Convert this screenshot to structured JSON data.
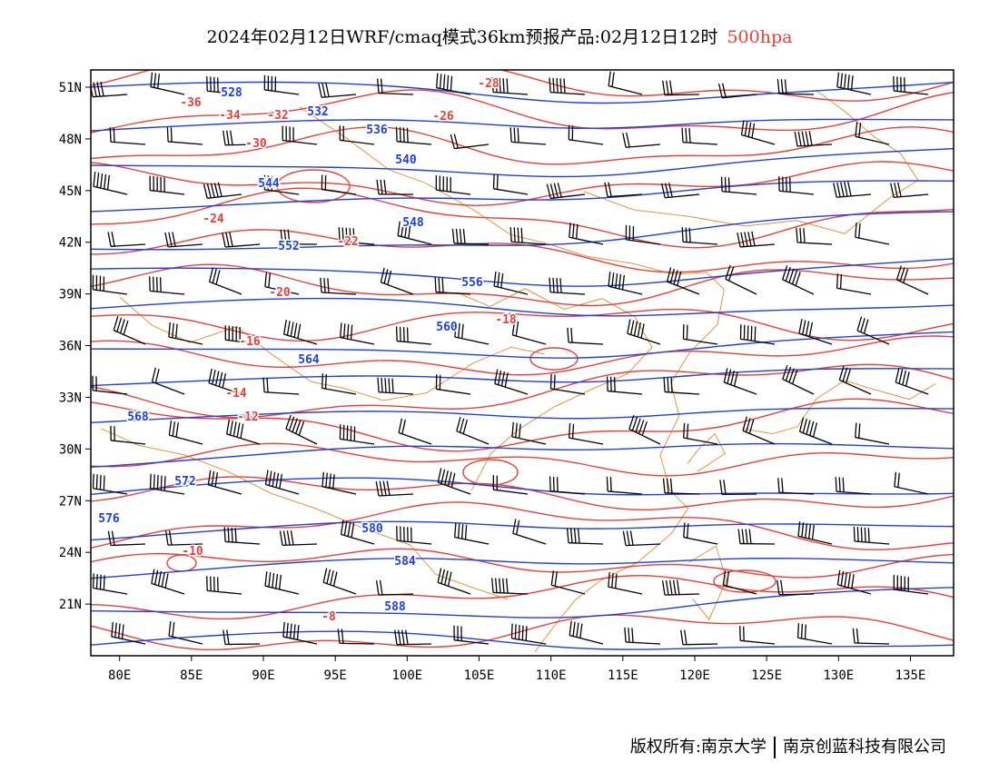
{
  "title": {
    "main": "2024年02月12日WRF/cmaq模式36km预报产品:02月12日12时",
    "level": "500hpa"
  },
  "colors": {
    "height_contour": "#1f3fe0",
    "temp_contour": "#e8403a",
    "coastline": "#e08a2a",
    "wind_barb": "#000000",
    "frame": "#000000"
  },
  "map": {
    "lon_range": [
      78,
      138
    ],
    "lat_range": [
      18,
      52
    ],
    "lon_ticks": [
      "80E",
      "85E",
      "90E",
      "95E",
      "100E",
      "105E",
      "110E",
      "115E",
      "120E",
      "125E",
      "130E",
      "135E"
    ],
    "lat_ticks": [
      "51N",
      "48N",
      "45N",
      "42N",
      "39N",
      "36N",
      "33N",
      "30N",
      "27N",
      "24N",
      "21N"
    ],
    "height_labels": [
      "528",
      "532",
      "536",
      "540",
      "544",
      "548",
      "552",
      "556",
      "560",
      "564",
      "568",
      "572",
      "576",
      "580",
      "584",
      "588"
    ],
    "temp_labels": [
      "-36",
      "-34",
      "-32",
      "-30",
      "-28",
      "-26",
      "-24",
      "-22",
      "-20",
      "-18",
      "-16",
      "-14",
      "-12",
      "-10",
      "-8"
    ]
  },
  "footer": {
    "copyright": "版权所有:南京大学",
    "company": "南京创蓝科技有限公司"
  }
}
